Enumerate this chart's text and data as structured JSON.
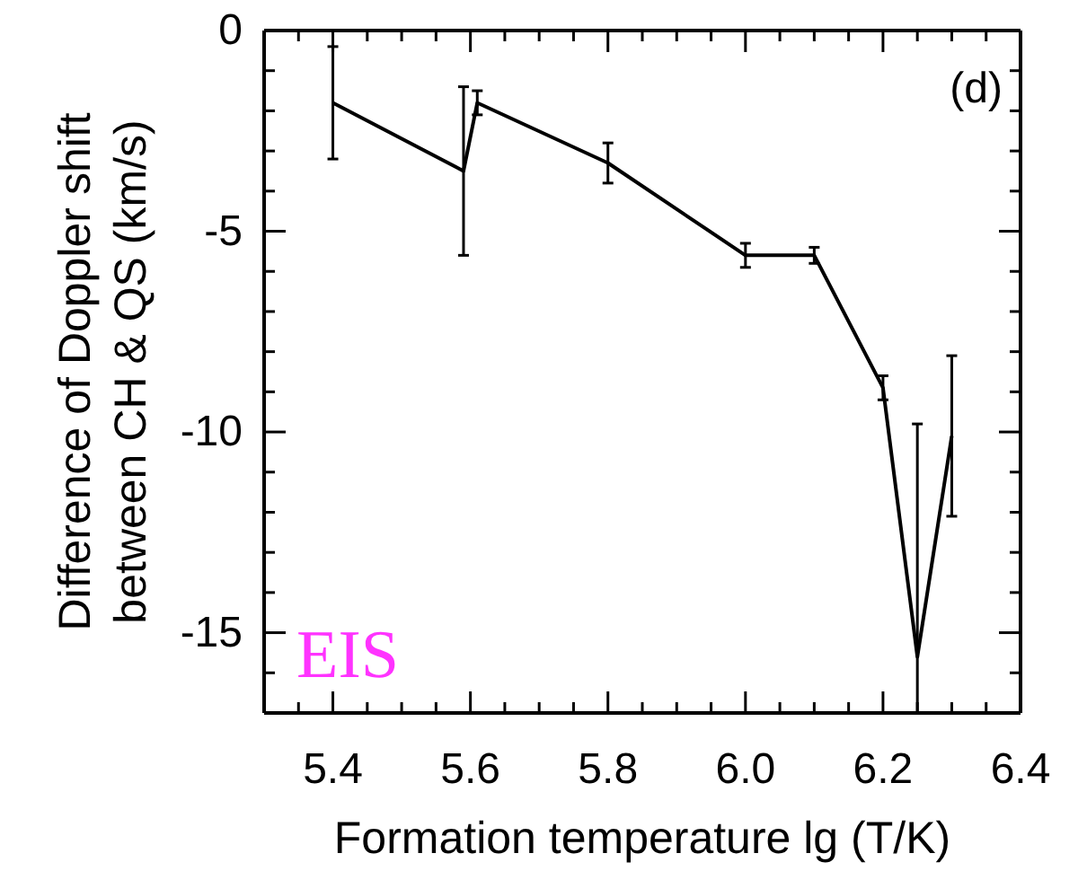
{
  "chart_data": {
    "type": "line",
    "xlabel": "Formation temperature lg (T/K)",
    "ylabel": "Difference of Doppler shift\nbetween CH & QS (km/s)",
    "x": [
      5.4,
      5.59,
      5.61,
      5.8,
      6.0,
      6.1,
      6.2,
      6.25,
      6.3
    ],
    "series": [
      {
        "color": "#000000",
        "values": [
          -1.8,
          -3.5,
          -1.8,
          -3.3,
          -5.6,
          -5.6,
          -8.9,
          -15.6,
          -10.1
        ],
        "errors": [
          1.4,
          2.1,
          0.3,
          0.5,
          0.3,
          0.2,
          0.3,
          [
            -17,
            -9.8
          ],
          2.0
        ]
      }
    ],
    "xlim": [
      5.3,
      6.4
    ],
    "ylim": [
      -17,
      0
    ],
    "xticks": [
      {
        "value": 5.35,
        "label": null
      },
      5.4,
      {
        "value": 5.45,
        "label": null
      },
      {
        "value": 5.5,
        "label": null
      },
      {
        "value": 5.55,
        "label": null
      },
      5.6,
      {
        "value": 5.65,
        "label": null
      },
      {
        "value": 5.7,
        "label": null
      },
      {
        "value": 5.75,
        "label": null
      },
      5.8,
      {
        "value": 5.85,
        "label": null
      },
      {
        "value": 5.9,
        "label": null
      },
      {
        "value": 5.95,
        "label": null
      },
      {
        "value": 6.0,
        "label": "6.0"
      },
      {
        "value": 6.05,
        "label": null
      },
      {
        "value": 6.1,
        "label": null
      },
      {
        "value": 6.15,
        "label": null
      },
      6.2,
      {
        "value": 6.25,
        "label": null
      },
      {
        "value": 6.3,
        "label": null
      },
      {
        "value": 6.35,
        "label": null
      },
      6.4
    ],
    "yticks": [
      0,
      {
        "value": -1,
        "label": null
      },
      {
        "value": -2,
        "label": null
      },
      {
        "value": -3,
        "label": null
      },
      {
        "value": -4,
        "label": null
      },
      -5,
      {
        "value": -6,
        "label": null
      },
      {
        "value": -7,
        "label": null
      },
      {
        "value": -8,
        "label": null
      },
      {
        "value": -9,
        "label": null
      },
      -10,
      {
        "value": -11,
        "label": null
      },
      {
        "value": -12,
        "label": null
      },
      {
        "value": -13,
        "label": null
      },
      {
        "value": -14,
        "label": null
      },
      -15,
      {
        "value": -16,
        "label": null
      }
    ],
    "line_style": "solid",
    "marker": "none",
    "grid": false,
    "annotations": [
      "(d)",
      "EIS"
    ]
  }
}
